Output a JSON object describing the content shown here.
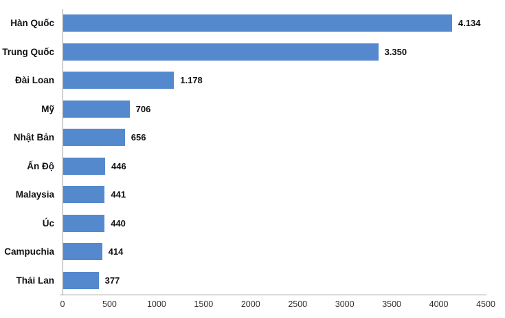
{
  "chart_data": {
    "type": "bar",
    "orientation": "horizontal",
    "title": "",
    "xlabel": "",
    "ylabel": "",
    "categories": [
      "Hàn Quốc",
      "Trung Quốc",
      "Đài Loan",
      "Mỹ",
      "Nhật Bản",
      "Ấn Độ",
      "Malaysia",
      "Úc",
      "Campuchia",
      "Thái Lan"
    ],
    "values": [
      4134,
      3350,
      1178,
      706,
      656,
      446,
      441,
      440,
      414,
      377
    ],
    "value_labels": [
      "4.134",
      "3.350",
      "1.178",
      "706",
      "656",
      "446",
      "441",
      "440",
      "414",
      "377"
    ],
    "x_ticks": [
      "0",
      "500",
      "1000",
      "1500",
      "2000",
      "2500",
      "3000",
      "3500",
      "4000",
      "4500"
    ],
    "x_tick_values": [
      0,
      500,
      1000,
      1500,
      2000,
      2500,
      3000,
      3500,
      4000,
      4500
    ],
    "xlim": [
      0,
      4500
    ],
    "grid": false,
    "legend_position": "none",
    "bar_color": "#5489CE",
    "axis_line_color": "#9B9B9B",
    "label_color": "#111111"
  }
}
